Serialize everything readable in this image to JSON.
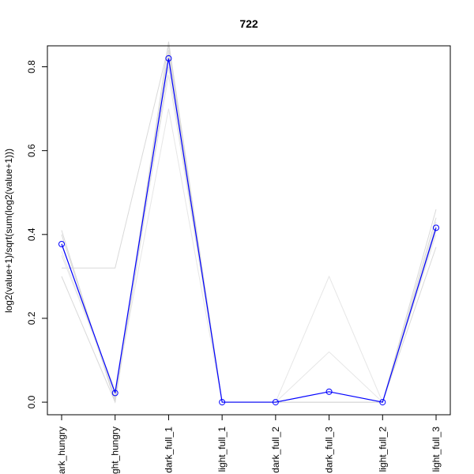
{
  "chart_data": {
    "type": "line",
    "title": "722",
    "xlabel": "",
    "ylabel": "log2(value+1)/sqrt(sum(log2(value+1)))",
    "categories": [
      "dark_hungry",
      "light_hungry",
      "dark_full_1",
      "light_full_1",
      "dark_full_2",
      "dark_full_3",
      "light_full_2",
      "light_full_3"
    ],
    "category_labels_shown": [
      "ark_hungry",
      "ght_hungry",
      "dark_full_1",
      "light_full_1",
      "dark_full_2",
      "dark_full_3",
      "light_full_2",
      "light_full_3"
    ],
    "ylim": [
      -0.03,
      0.85
    ],
    "yticks": [
      0.0,
      0.2,
      0.4,
      0.6,
      0.8
    ],
    "ytick_labels": [
      "0.0",
      "0.2",
      "0.4",
      "0.6",
      "0.8"
    ],
    "grid": false,
    "series": [
      {
        "role": "highlight",
        "color": "#0000ff",
        "markers": true,
        "values": [
          0.377,
          0.022,
          0.82,
          0.0,
          0.0,
          0.025,
          0.0,
          0.416
        ]
      }
    ],
    "background_series": [
      {
        "color": "#d9d9d9",
        "values": [
          0.32,
          0.32,
          0.85,
          0.0,
          0.0,
          0.0,
          0.0,
          0.42
        ]
      },
      {
        "color": "#d9d9d9",
        "values": [
          0.41,
          0.0,
          0.83,
          0.0,
          0.0,
          0.0,
          0.0,
          0.46
        ]
      },
      {
        "color": "#d9d9d9",
        "values": [
          0.3,
          0.0,
          0.8,
          0.0,
          0.0,
          0.0,
          0.0,
          0.37
        ]
      },
      {
        "color": "#d9d9d9",
        "values": [
          0.38,
          0.01,
          0.84,
          0.0,
          0.0,
          0.0,
          0.0,
          0.44
        ]
      },
      {
        "color": "#e6e6e6",
        "values": [
          0.36,
          0.02,
          0.7,
          0.0,
          0.0,
          0.3,
          0.0,
          0.4
        ]
      },
      {
        "color": "#e6e6e6",
        "values": [
          0.35,
          0.03,
          0.78,
          0.0,
          0.0,
          0.12,
          0.0,
          0.43
        ]
      },
      {
        "color": "#d9d9d9",
        "values": [
          0.4,
          0.005,
          0.86,
          0.0,
          0.0,
          0.0,
          0.0,
          0.41
        ]
      }
    ]
  }
}
